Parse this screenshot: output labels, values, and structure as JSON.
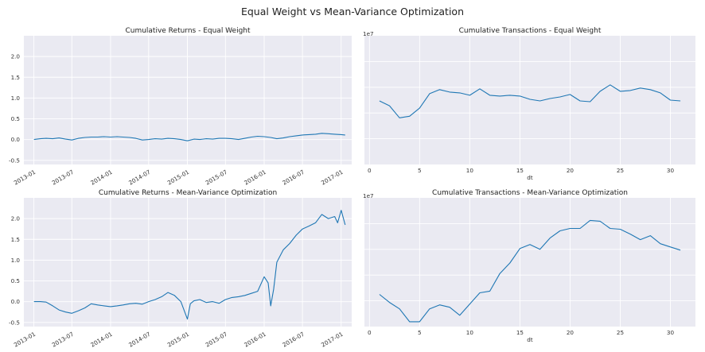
{
  "suptitle": "Equal Weight vs Mean-Variance Optimization",
  "chart_data": [
    {
      "type": "line",
      "title": "Cumulative Returns - Equal Weight",
      "xlabel": "",
      "ylabel": "",
      "x_kind": "date",
      "xlim": [
        "2012-11-15",
        "2017-02-20"
      ],
      "ylim": [
        -0.6,
        2.5
      ],
      "yticks": [
        -0.5,
        0.0,
        0.5,
        1.0,
        1.5,
        2.0
      ],
      "ytick_labels": [
        "-0.5",
        "0.0",
        "0.5",
        "1.0",
        "1.5",
        "2.0"
      ],
      "xticks": [
        "2013-01-01",
        "2013-07-01",
        "2014-01-01",
        "2014-07-01",
        "2015-01-01",
        "2015-07-01",
        "2016-01-01",
        "2016-07-01",
        "2017-01-01"
      ],
      "xtick_labels": [
        "2013-01",
        "2013-07",
        "2014-01",
        "2014-07",
        "2015-01",
        "2015-07",
        "2016-01",
        "2016-07",
        "2017-01"
      ],
      "grid": true,
      "series": [
        {
          "color": "#1f77b4",
          "x": [
            "2013-01-02",
            "2013-02-01",
            "2013-03-01",
            "2013-04-01",
            "2013-05-01",
            "2013-06-01",
            "2013-07-01",
            "2013-08-01",
            "2013-09-01",
            "2013-10-01",
            "2013-11-01",
            "2013-12-01",
            "2014-01-01",
            "2014-02-01",
            "2014-03-01",
            "2014-04-01",
            "2014-05-01",
            "2014-06-01",
            "2014-07-01",
            "2014-08-01",
            "2014-09-01",
            "2014-10-01",
            "2014-11-01",
            "2014-12-01",
            "2015-01-01",
            "2015-02-01",
            "2015-03-01",
            "2015-04-01",
            "2015-05-01",
            "2015-06-01",
            "2015-07-01",
            "2015-08-01",
            "2015-09-01",
            "2015-10-01",
            "2015-11-01",
            "2015-12-01",
            "2016-01-01",
            "2016-02-01",
            "2016-03-01",
            "2016-04-01",
            "2016-05-01",
            "2016-06-01",
            "2016-07-01",
            "2016-08-01",
            "2016-09-01",
            "2016-10-01",
            "2016-11-01",
            "2016-12-01",
            "2017-01-01",
            "2017-01-20"
          ],
          "y": [
            0.0,
            0.02,
            0.03,
            0.02,
            0.04,
            0.01,
            -0.01,
            0.03,
            0.05,
            0.06,
            0.06,
            0.07,
            0.06,
            0.07,
            0.06,
            0.05,
            0.03,
            -0.01,
            0.0,
            0.02,
            0.01,
            0.03,
            0.02,
            0.0,
            -0.03,
            0.01,
            0.0,
            0.02,
            0.01,
            0.03,
            0.03,
            0.02,
            0.0,
            0.03,
            0.06,
            0.08,
            0.07,
            0.05,
            0.02,
            0.04,
            0.07,
            0.09,
            0.11,
            0.12,
            0.13,
            0.15,
            0.14,
            0.13,
            0.12,
            0.11
          ]
        }
      ]
    },
    {
      "type": "line",
      "title": "Cumulative Transactions - Equal Weight",
      "xlabel": "dt",
      "ylabel": "",
      "offset_text": "1e7",
      "xlim": [
        -0.5,
        32.5
      ],
      "ylim": [
        0.0,
        1.6
      ],
      "yticks": [],
      "xticks": [
        0,
        5,
        10,
        15,
        20,
        25,
        30
      ],
      "xtick_labels": [
        "0",
        "5",
        "10",
        "15",
        "20",
        "25",
        "30"
      ],
      "grid": true,
      "series": [
        {
          "color": "#1f77b4",
          "x": [
            1,
            2,
            3,
            4,
            5,
            6,
            7,
            8,
            9,
            10,
            11,
            12,
            13,
            14,
            15,
            16,
            17,
            18,
            19,
            20,
            21,
            22,
            23,
            24,
            25,
            26,
            27,
            28,
            29,
            30,
            31
          ],
          "y": [
            0.79,
            0.73,
            0.58,
            0.6,
            0.7,
            0.88,
            0.93,
            0.9,
            0.89,
            0.86,
            0.94,
            0.86,
            0.85,
            0.86,
            0.85,
            0.81,
            0.79,
            0.82,
            0.84,
            0.87,
            0.79,
            0.78,
            0.91,
            0.99,
            0.91,
            0.92,
            0.95,
            0.93,
            0.89,
            0.8,
            0.79
          ]
        }
      ]
    },
    {
      "type": "line",
      "title": "Cumulative Returns - Mean-Variance Optimization",
      "xlabel": "",
      "ylabel": "",
      "x_kind": "date",
      "xlim": [
        "2012-11-15",
        "2017-02-20"
      ],
      "ylim": [
        -0.6,
        2.5
      ],
      "yticks": [
        -0.5,
        0.0,
        0.5,
        1.0,
        1.5,
        2.0
      ],
      "ytick_labels": [
        "-0.5",
        "0.0",
        "0.5",
        "1.0",
        "1.5",
        "2.0"
      ],
      "xticks": [
        "2013-01-01",
        "2013-07-01",
        "2014-01-01",
        "2014-07-01",
        "2015-01-01",
        "2015-07-01",
        "2016-01-01",
        "2016-07-01",
        "2017-01-01"
      ],
      "xtick_labels": [
        "2013-01",
        "2013-07",
        "2014-01",
        "2014-07",
        "2015-01",
        "2015-07",
        "2016-01",
        "2016-07",
        "2017-01"
      ],
      "grid": true,
      "series": [
        {
          "color": "#1f77b4",
          "x": [
            "2013-01-02",
            "2013-02-01",
            "2013-03-01",
            "2013-04-01",
            "2013-05-01",
            "2013-06-01",
            "2013-07-01",
            "2013-08-01",
            "2013-09-01",
            "2013-10-01",
            "2013-11-01",
            "2013-12-01",
            "2014-01-01",
            "2014-02-01",
            "2014-03-01",
            "2014-04-01",
            "2014-05-01",
            "2014-06-01",
            "2014-07-01",
            "2014-08-01",
            "2014-09-01",
            "2014-10-01",
            "2014-11-01",
            "2014-12-01",
            "2015-01-01",
            "2015-01-15",
            "2015-02-01",
            "2015-03-01",
            "2015-04-01",
            "2015-05-01",
            "2015-06-01",
            "2015-07-01",
            "2015-08-01",
            "2015-09-01",
            "2015-10-01",
            "2015-11-01",
            "2015-12-01",
            "2016-01-01",
            "2016-01-20",
            "2016-02-01",
            "2016-02-15",
            "2016-03-01",
            "2016-04-01",
            "2016-05-01",
            "2016-06-01",
            "2016-07-01",
            "2016-08-01",
            "2016-09-01",
            "2016-10-01",
            "2016-11-01",
            "2016-12-01",
            "2016-12-15",
            "2017-01-01",
            "2017-01-20"
          ],
          "y": [
            0.0,
            0.0,
            -0.01,
            -0.1,
            -0.2,
            -0.25,
            -0.28,
            -0.22,
            -0.15,
            -0.05,
            -0.08,
            -0.1,
            -0.12,
            -0.1,
            -0.08,
            -0.05,
            -0.04,
            -0.06,
            0.0,
            0.05,
            0.12,
            0.22,
            0.15,
            0.0,
            -0.42,
            -0.05,
            0.02,
            0.05,
            -0.02,
            0.0,
            -0.04,
            0.05,
            0.1,
            0.12,
            0.15,
            0.2,
            0.25,
            0.6,
            0.45,
            -0.1,
            0.3,
            0.95,
            1.25,
            1.4,
            1.6,
            1.75,
            1.82,
            1.9,
            2.1,
            2.0,
            2.05,
            1.9,
            2.2,
            1.85
          ]
        }
      ]
    },
    {
      "type": "line",
      "title": "Cumulative Transactions - Mean-Variance Optimization",
      "xlabel": "dt",
      "ylabel": "",
      "offset_text": "1e7",
      "xlim": [
        -0.5,
        32.5
      ],
      "ylim": [
        0.0,
        1.6
      ],
      "yticks": [],
      "xticks": [
        0,
        5,
        10,
        15,
        20,
        25,
        30
      ],
      "xtick_labels": [
        "0",
        "5",
        "10",
        "15",
        "20",
        "25",
        "30"
      ],
      "grid": true,
      "series": [
        {
          "color": "#1f77b4",
          "x": [
            1,
            2,
            3,
            4,
            5,
            6,
            7,
            8,
            9,
            10,
            11,
            12,
            13,
            14,
            15,
            16,
            17,
            18,
            19,
            20,
            21,
            22,
            23,
            24,
            25,
            26,
            27,
            28,
            29,
            30,
            31
          ],
          "y": [
            0.4,
            0.3,
            0.22,
            0.06,
            0.06,
            0.22,
            0.27,
            0.24,
            0.14,
            0.28,
            0.42,
            0.44,
            0.66,
            0.79,
            0.97,
            1.02,
            0.96,
            1.1,
            1.19,
            1.22,
            1.22,
            1.32,
            1.31,
            1.22,
            1.21,
            1.15,
            1.08,
            1.13,
            1.03,
            0.99,
            0.95
          ]
        }
      ]
    }
  ]
}
